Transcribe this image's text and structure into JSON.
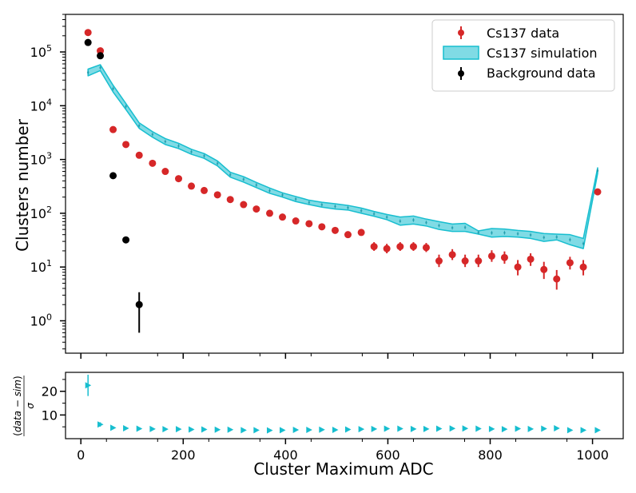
{
  "chart_data": [
    {
      "type": "scatter",
      "panel": "main",
      "yscale": "log",
      "ylabel": "Clusters number",
      "xlim": [
        -30,
        1060
      ],
      "ylim": [
        0.25,
        500000
      ],
      "x_ticks": [
        0,
        200,
        400,
        600,
        800,
        1000
      ],
      "y_ticks": [
        {
          "value": 1,
          "label": "10",
          "exp": "0"
        },
        {
          "value": 10,
          "label": "10",
          "exp": "1"
        },
        {
          "value": 100,
          "label": "10",
          "exp": "2"
        },
        {
          "value": 1000,
          "label": "10",
          "exp": "3"
        },
        {
          "value": 10000,
          "label": "10",
          "exp": "4"
        },
        {
          "value": 100000,
          "label": "10",
          "exp": "5"
        }
      ],
      "legend": {
        "position": "top-right",
        "entries": [
          "Cs137 data",
          "Cs137 simulation",
          "Background data"
        ]
      },
      "series": [
        {
          "name": "Cs137 data",
          "color": "#d62728",
          "x": [
            14,
            38,
            63,
            88,
            114,
            140,
            165,
            191,
            216,
            241,
            267,
            292,
            318,
            343,
            369,
            394,
            420,
            446,
            471,
            497,
            522,
            548,
            573,
            598,
            624,
            650,
            675,
            700,
            726,
            751,
            777,
            803,
            828,
            854,
            879,
            905,
            930,
            956,
            982,
            1010
          ],
          "y": [
            230000,
            105000,
            3600,
            1900,
            1200,
            850,
            600,
            440,
            320,
            265,
            220,
            180,
            145,
            120,
            100,
            85,
            72,
            64,
            56,
            48,
            40,
            44,
            24,
            22,
            24,
            24,
            23,
            13,
            17,
            13,
            13,
            16,
            15,
            10,
            14,
            9,
            6,
            12,
            10,
            250
          ],
          "err_lo": [
            0,
            0,
            0,
            0,
            0,
            0,
            0,
            0,
            0,
            0,
            0,
            0,
            0,
            0,
            0,
            0,
            0,
            0,
            0,
            0,
            0,
            0,
            4,
            4,
            4,
            4,
            4,
            3,
            3.5,
            3,
            3,
            3.5,
            3.5,
            3,
            3.5,
            3,
            2.2,
            3,
            3,
            0
          ],
          "err_hi": [
            0,
            0,
            0,
            0,
            0,
            0,
            0,
            0,
            0,
            0,
            0,
            0,
            0,
            0,
            0,
            0,
            0,
            0,
            0,
            0,
            0,
            0,
            5,
            5,
            5,
            5,
            5,
            4,
            4.5,
            4,
            4,
            4.5,
            4.5,
            3.5,
            4,
            3.5,
            2.8,
            3.5,
            3.5,
            0
          ]
        },
        {
          "name": "Cs137 simulation",
          "color": "#17becf",
          "x": [
            14,
            38,
            63,
            88,
            114,
            140,
            165,
            191,
            216,
            241,
            267,
            292,
            318,
            343,
            369,
            394,
            420,
            446,
            471,
            497,
            522,
            548,
            573,
            598,
            624,
            650,
            675,
            700,
            726,
            751,
            777,
            803,
            828,
            854,
            879,
            905,
            930,
            956,
            982,
            1010
          ],
          "lower": [
            36000,
            45000,
            18000,
            8500,
            3800,
            2600,
            1900,
            1600,
            1250,
            1050,
            760,
            470,
            380,
            300,
            235,
            200,
            165,
            145,
            130,
            120,
            115,
            100,
            88,
            76,
            60,
            63,
            58,
            50,
            46,
            46,
            41,
            36,
            37,
            36,
            34,
            30,
            32,
            26,
            22,
            550
          ],
          "upper": [
            48000,
            58000,
            24000,
            11000,
            4800,
            3300,
            2450,
            2000,
            1550,
            1290,
            940,
            580,
            480,
            375,
            295,
            240,
            205,
            175,
            160,
            150,
            140,
            125,
            108,
            95,
            85,
            89,
            78,
            70,
            63,
            65,
            47,
            52,
            51,
            48,
            46,
            42,
            41,
            40,
            34,
            700
          ]
        },
        {
          "name": "Background data",
          "color": "#000000",
          "x": [
            14,
            38,
            63,
            88,
            114
          ],
          "y": [
            150000,
            85000,
            500,
            32,
            2
          ],
          "err_lo": [
            0,
            0,
            0,
            4,
            1.4
          ],
          "err_hi": [
            0,
            0,
            0,
            4,
            1.4
          ]
        }
      ]
    },
    {
      "type": "scatter",
      "panel": "ratio",
      "xlabel": "Cluster Maximum ADC",
      "ylabel": "(data − sim) / σ",
      "ylabel_parts": {
        "data": "data",
        "minus": " − ",
        "sim": "sim",
        "sigma": "σ"
      },
      "xlim": [
        -30,
        1060
      ],
      "ylim": [
        0,
        28
      ],
      "x_ticks": [
        0,
        200,
        400,
        600,
        800,
        1000
      ],
      "y_ticks": [
        10,
        20
      ],
      "series": [
        {
          "name": "ratio",
          "color": "#17becf",
          "x": [
            14,
            38,
            63,
            88,
            114,
            140,
            165,
            191,
            216,
            241,
            267,
            292,
            318,
            343,
            369,
            394,
            420,
            446,
            471,
            497,
            522,
            548,
            573,
            598,
            624,
            650,
            675,
            700,
            726,
            751,
            777,
            803,
            828,
            854,
            879,
            905,
            930,
            956,
            982,
            1010
          ],
          "y": [
            22.5,
            6,
            4.6,
            4.4,
            4.2,
            4.1,
            4.0,
            4.0,
            3.9,
            3.9,
            3.8,
            3.8,
            3.6,
            3.6,
            3.5,
            3.6,
            3.7,
            3.7,
            3.8,
            3.7,
            3.9,
            4.0,
            4.1,
            4.2,
            4.2,
            4.1,
            4.1,
            4.2,
            4.3,
            4.3,
            4.2,
            4.1,
            4.0,
            4.2,
            4.1,
            4.2,
            4.4,
            3.6,
            3.6,
            3.6
          ],
          "err": [
            4.5,
            0.9,
            0.6,
            0.5,
            0.5,
            0.4,
            0.4,
            0.4,
            0.4,
            0.4,
            0.4,
            0.4,
            0.4,
            0.4,
            0.4,
            0.4,
            0.4,
            0.4,
            0.4,
            0.4,
            0.4,
            0.4,
            0.4,
            0.4,
            0.4,
            0.4,
            0.4,
            0.4,
            0.4,
            0.4,
            0.4,
            0.4,
            0.4,
            0.4,
            0.4,
            0.4,
            0.4,
            0.4,
            0.4,
            0.4
          ],
          "xerr": 4
        }
      ]
    }
  ]
}
